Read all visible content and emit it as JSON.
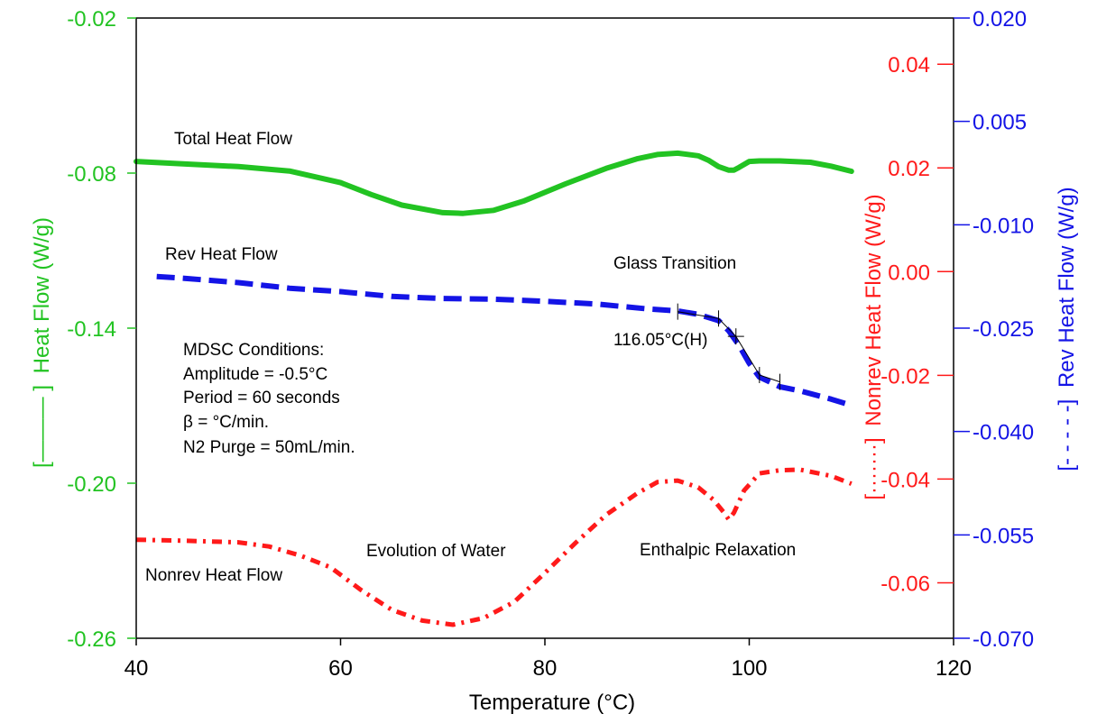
{
  "chart_data": {
    "type": "line",
    "xlabel": "Temperature (°C)",
    "xlim": [
      40,
      120
    ],
    "xticks": [
      "40",
      "60",
      "80",
      "100",
      "120"
    ],
    "axes": {
      "left": {
        "label_bracket": "[——— ]",
        "label": "Heat Flow (W/g)",
        "color": "#22c322",
        "lim": [
          -0.26,
          -0.02
        ],
        "ticks": [
          "-0.02",
          "-0.08",
          "-0.14",
          "-0.20",
          "-0.26"
        ]
      },
      "right1": {
        "label_bracket": "[·······]",
        "label": "Nonrev Heat Flow (W/g)",
        "color": "#ff1a1a",
        "lim": [
          -0.0707,
          0.0489
        ],
        "ticks": [
          "0.04",
          "0.02",
          "0.00",
          "-0.02",
          "-0.04",
          "-0.06"
        ]
      },
      "right2": {
        "label_bracket": "[- - - - -]",
        "label": "Rev Heat Flow (W/g)",
        "color": "#1414e6",
        "lim": [
          -0.07,
          0.02
        ],
        "ticks": [
          "0.020",
          "0.005",
          "-0.010",
          "-0.025",
          "-0.040",
          "-0.055",
          "-0.070"
        ]
      }
    },
    "series": [
      {
        "name": "Total Heat Flow",
        "axis": "left",
        "color": "#22c322",
        "style": "solid",
        "x": [
          40,
          45,
          50,
          55,
          60,
          63,
          66,
          70,
          72,
          75,
          78,
          82,
          86,
          89,
          91,
          93,
          95,
          96,
          97,
          98,
          98.5,
          99,
          100,
          101,
          103,
          106,
          108,
          110
        ],
        "y": [
          -0.0755,
          -0.0765,
          -0.0775,
          -0.0792,
          -0.0837,
          -0.0883,
          -0.0924,
          -0.0953,
          -0.0956,
          -0.0944,
          -0.0907,
          -0.0842,
          -0.0782,
          -0.0745,
          -0.0728,
          -0.0723,
          -0.0733,
          -0.075,
          -0.0775,
          -0.0789,
          -0.0789,
          -0.0778,
          -0.0755,
          -0.0753,
          -0.0753,
          -0.0758,
          -0.0773,
          -0.0793
        ]
      },
      {
        "name": "Rev Heat Flow",
        "axis": "right2",
        "color": "#1414e6",
        "style": "dashed",
        "x": [
          42,
          45,
          50,
          55,
          60,
          65,
          70,
          75,
          80,
          85,
          90,
          93,
          95,
          97,
          98,
          99,
          100,
          101,
          103,
          105,
          108,
          110
        ],
        "y": [
          -0.0175,
          -0.0178,
          -0.0184,
          -0.0192,
          -0.0197,
          -0.0204,
          -0.0207,
          -0.0208,
          -0.0211,
          -0.0215,
          -0.0222,
          -0.0225,
          -0.023,
          -0.0239,
          -0.0254,
          -0.0275,
          -0.0301,
          -0.0321,
          -0.0335,
          -0.0341,
          -0.0353,
          -0.0362
        ]
      },
      {
        "name": "Nonrev Heat Flow",
        "axis": "right1",
        "color": "#ff1a1a",
        "style": "dashdot",
        "x": [
          40,
          45,
          50,
          53,
          56,
          59,
          62,
          65,
          68,
          71,
          74,
          77,
          80,
          83,
          86,
          89,
          91,
          93,
          95,
          96.5,
          97.5,
          98,
          98.5,
          99.5,
          101,
          103,
          105,
          108,
          110
        ],
        "y": [
          -0.0517,
          -0.0519,
          -0.0522,
          -0.053,
          -0.0547,
          -0.057,
          -0.0614,
          -0.0652,
          -0.0673,
          -0.0681,
          -0.0668,
          -0.0637,
          -0.0581,
          -0.0523,
          -0.0469,
          -0.0428,
          -0.0406,
          -0.0403,
          -0.0416,
          -0.044,
          -0.0464,
          -0.0478,
          -0.0465,
          -0.0422,
          -0.0389,
          -0.0383,
          -0.0382,
          -0.0394,
          -0.0409
        ]
      }
    ],
    "annotations": {
      "total": "Total Heat Flow",
      "rev": "Rev Heat Flow",
      "nonrev": "Nonrev Heat Flow",
      "glass": "Glass Transition",
      "tg_value": "116.05°C(H)",
      "water": "Evolution of Water",
      "enthalpic": "Enthalpic Relaxation",
      "conditions": [
        "MDSC Conditions:",
        "Amplitude = -0.5°C",
        "Period = 60 seconds",
        "β = °C/min.",
        "N2 Purge = 50mL/min."
      ]
    },
    "tg_marker": {
      "x": [
        93,
        97,
        98.7,
        101,
        103
      ],
      "y": [
        -0.0226,
        -0.0236,
        -0.0262,
        -0.0318,
        -0.0328
      ]
    },
    "grid": false,
    "legend": "none"
  }
}
